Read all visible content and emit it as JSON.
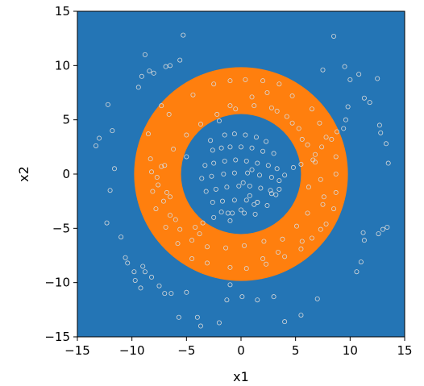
{
  "chart_data": {
    "type": "scatter",
    "title": "",
    "xlabel": "x1",
    "ylabel": "x2",
    "xlim": [
      -15,
      15
    ],
    "ylim": [
      -15,
      15
    ],
    "xticks": [
      -15,
      -10,
      -5,
      0,
      5,
      10,
      15
    ],
    "yticks": [
      -15,
      -10,
      -5,
      0,
      5,
      10,
      15
    ],
    "xtick_labels": [
      "−15",
      "−10",
      "−5",
      "0",
      "5",
      "10",
      "15"
    ],
    "ytick_labels": [
      "−15",
      "−10",
      "−5",
      "0",
      "5",
      "10",
      "15"
    ],
    "grid": false,
    "legend": false,
    "decision_regions": {
      "background_class_color": "#2475b5",
      "ring_class_color": "#ff7f0e",
      "ring_center": [
        0,
        0
      ],
      "ring_inner_radius": 5.5,
      "ring_outer_radius": 9.8
    },
    "points_style": {
      "fill": "none",
      "stroke": "#d9d9d9",
      "marker": "circle"
    },
    "points_x": [
      -13.3,
      -13.0,
      -12.2,
      -11.8,
      -11.6,
      -12.0,
      -12.3,
      -11.0,
      -10.6,
      -10.4,
      -9.8,
      -9.7,
      -9.2,
      -9.4,
      -9.1,
      -8.8,
      -8.4,
      -6.9,
      -6.5,
      -5.6,
      -5.3,
      -5.0,
      -7.5,
      -8.2,
      -8.8,
      -9.0,
      -8.0,
      -7.0,
      -6.4,
      -5.7,
      -4.0,
      -3.7,
      -2.0,
      -1.3,
      -1.0,
      0.1,
      1.5,
      3.0,
      4.0,
      5.5,
      7.0,
      7.5,
      8.5,
      9.5,
      10.0,
      10.6,
      11.0,
      11.3,
      11.2,
      12.6,
      13.0,
      13.4,
      13.5,
      13.3,
      12.8,
      12.7,
      12.5,
      11.8,
      11.3,
      10.8,
      9.8,
      9.6,
      9.4,
      8.8,
      7.8,
      7.4,
      6.8,
      6.6,
      5.5,
      4.8,
      4.0,
      3.5,
      2.8,
      1.5,
      1.2,
      0.0,
      -1.2,
      -2.5,
      -3.5,
      -4.2,
      -7.7,
      -6.8,
      -6.5,
      -6.0,
      -3.8,
      2.0,
      3.4,
      5.6,
      7.3,
      -7.3,
      -8.3,
      -8.5,
      -6.6,
      -7.3,
      -4.4,
      -2.5,
      -1.0,
      0.4,
      2.0,
      3.5,
      4.7,
      6.5,
      7.2,
      8.3,
      8.7,
      8.7,
      8.7,
      8.5,
      7.8,
      6.5,
      5.5,
      4.0,
      2.3,
      0.5,
      -1.0,
      -3.1,
      -4.5,
      -5.8,
      -6.9,
      -7.8,
      -8.1,
      -8.2,
      -5.0,
      -2.8,
      -2.0,
      -1.0,
      1.0,
      2.4,
      3.3,
      4.7,
      5.6,
      6.2,
      7.5,
      6.1,
      5.1,
      3.8,
      2.1,
      0.3,
      -1.4,
      -3.1,
      -4.5,
      -5.6,
      -6.5,
      -7.1,
      -7.6,
      -7.0,
      -6.2,
      -5.0,
      -3.7,
      -2.2,
      -0.5,
      1.2,
      2.8,
      4.2,
      5.3,
      6.1,
      6.8,
      7.3,
      7.6,
      -1.5,
      -0.6,
      0.4,
      1.4,
      2.3,
      -2.6,
      -1.8,
      -1.0,
      0.0,
      1.0,
      2.0,
      3.0,
      -3.3,
      -2.5,
      -1.5,
      -0.5,
      0.5,
      1.5,
      2.5,
      3.3,
      -3.6,
      -2.7,
      -1.6,
      -0.6,
      0.6,
      1.7,
      2.8,
      3.5,
      -3.2,
      -2.3,
      -1.3,
      -0.2,
      0.8,
      1.8,
      2.7,
      3.2,
      -2.6,
      -1.7,
      -0.6,
      0.5,
      1.5,
      2.4,
      -1.8,
      -0.8,
      0.3,
      1.3,
      -1.0,
      0.2,
      1.0,
      0.8
    ],
    "points_y": [
      2.6,
      3.3,
      6.4,
      4.0,
      0.5,
      -1.5,
      -4.5,
      -5.8,
      -7.7,
      -8.2,
      -9.0,
      -9.8,
      -10.5,
      8.0,
      9.0,
      11.0,
      9.5,
      9.9,
      10.0,
      10.5,
      12.8,
      -10.9,
      -10.3,
      -9.5,
      -9.0,
      -8.5,
      9.3,
      -11.0,
      -11.0,
      -13.2,
      -13.2,
      -14.0,
      -13.7,
      -11.6,
      -10.2,
      -11.3,
      -11.6,
      -11.3,
      -13.6,
      -13.0,
      -11.5,
      9.6,
      12.7,
      9.9,
      8.7,
      -9.0,
      -8.1,
      -6.1,
      -5.4,
      -5.5,
      -5.1,
      -4.9,
      1.0,
      2.8,
      3.8,
      4.5,
      8.8,
      6.6,
      7.0,
      9.2,
      6.2,
      5.0,
      4.2,
      3.9,
      3.4,
      2.5,
      1.8,
      1.3,
      0.9,
      0.6,
      -0.1,
      -1.4,
      -1.8,
      -2.6,
      -2.8,
      -3.3,
      -3.6,
      -4.0,
      -4.5,
      -4.9,
      -0.3,
      -1.7,
      -2.1,
      -4.2,
      -5.5,
      -7.8,
      -7.2,
      -6.2,
      -5.1,
      0.7,
      1.4,
      3.7,
      5.5,
      6.3,
      7.3,
      8.3,
      8.6,
      8.7,
      8.6,
      8.3,
      7.2,
      6.0,
      4.7,
      3.2,
      1.6,
      0.0,
      -1.7,
      -3.2,
      -4.6,
      -5.9,
      -6.9,
      -7.6,
      -8.3,
      -8.7,
      -8.6,
      -8.2,
      -7.8,
      -6.4,
      -4.9,
      -3.2,
      -1.6,
      0.2,
      1.6,
      3.1,
      4.9,
      6.3,
      7.1,
      7.5,
      5.8,
      4.7,
      3.2,
      -1.2,
      -2.8,
      -3.6,
      -4.8,
      -6.0,
      -6.2,
      -6.6,
      -6.8,
      -6.7,
      -6.1,
      -5.1,
      -3.8,
      -2.5,
      -1.0,
      0.8,
      2.3,
      3.6,
      4.6,
      5.5,
      6.0,
      6.3,
      6.1,
      5.3,
      4.2,
      2.7,
      1.1,
      -0.5,
      -2.1,
      3.6,
      3.7,
      3.6,
      3.4,
      3.0,
      2.2,
      2.4,
      2.5,
      2.5,
      2.4,
      2.1,
      1.9,
      0.8,
      1.0,
      1.2,
      1.3,
      1.2,
      1.0,
      0.8,
      0.5,
      -0.4,
      -0.2,
      0.0,
      0.1,
      0.1,
      -0.1,
      -0.3,
      -0.6,
      -1.6,
      -1.4,
      -1.2,
      -1.1,
      -1.1,
      -1.3,
      -1.5,
      -1.9,
      -2.6,
      -2.5,
      -2.4,
      -2.4,
      -2.6,
      -2.9,
      -3.5,
      -3.6,
      -3.6,
      -3.7,
      -4.3,
      -0.8,
      0.4,
      -2.0
    ]
  }
}
